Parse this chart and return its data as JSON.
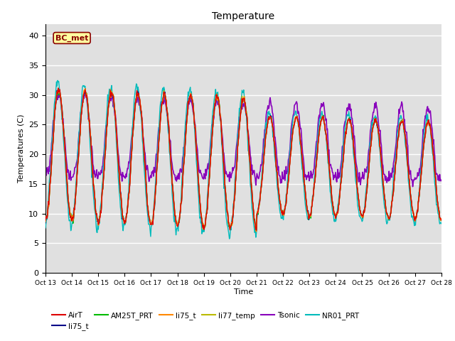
{
  "title": "Temperature",
  "xlabel": "Time",
  "ylabel": "Temperatures (C)",
  "ylim": [
    0,
    42
  ],
  "yticks": [
    0,
    5,
    10,
    15,
    20,
    25,
    30,
    35,
    40
  ],
  "x_labels": [
    "Oct 13",
    "Oct 14",
    "Oct 15",
    "Oct 16",
    "Oct 17",
    "Oct 18",
    "Oct 19",
    "Oct 20",
    "Oct 21",
    "Oct 22",
    "Oct 23",
    "Oct 24",
    "Oct 25",
    "Oct 26",
    "Oct 27",
    "Oct 28"
  ],
  "annotation_text": "BC_met",
  "annotation_color": "#8B0000",
  "annotation_bg": "#FFFFA0",
  "bg_color": "#E0E0E0",
  "series": [
    {
      "label": "AirT",
      "color": "#DD0000"
    },
    {
      "label": "li75_t",
      "color": "#000088"
    },
    {
      "label": "AM25T_PRT",
      "color": "#00BB00"
    },
    {
      "label": "li75_t",
      "color": "#FF8800"
    },
    {
      "label": "li77_temp",
      "color": "#BBBB00"
    },
    {
      "label": "Tsonic",
      "color": "#8800BB"
    },
    {
      "label": "NR01_PRT",
      "color": "#00BBBB"
    }
  ]
}
